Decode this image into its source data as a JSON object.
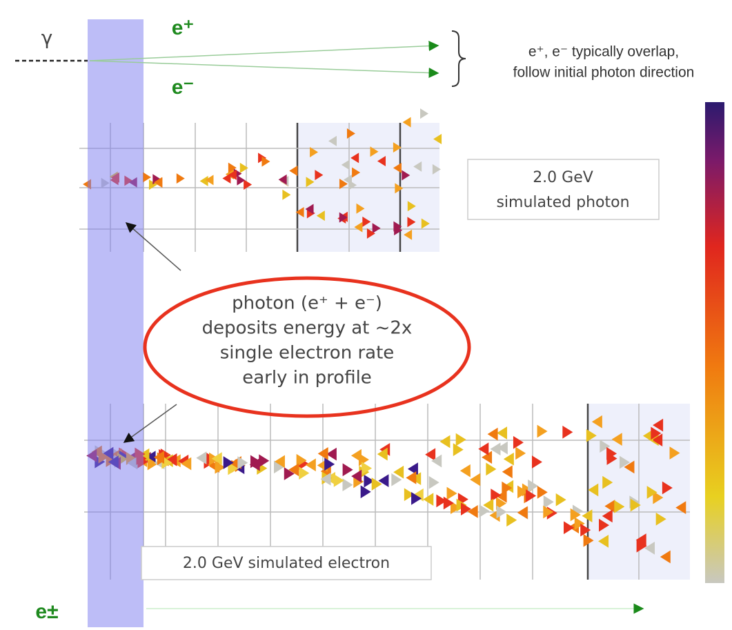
{
  "labels": {
    "photon": "γ",
    "positron": "e⁺",
    "electron": "e⁻",
    "lepton": "e±"
  },
  "annotation": {
    "lines": [
      "e⁺, e⁻ typically overlap,",
      "follow initial photon direction"
    ]
  },
  "photon_panel": {
    "label_lines": [
      "2.0 GeV",
      "simulated photon"
    ]
  },
  "electron_panel": {
    "label": "2.0 GeV simulated electron"
  },
  "callout": {
    "lines": [
      "photon (e⁺ + e⁻)",
      "deposits energy at ~2x",
      "single electron rate",
      "early in profile"
    ]
  }
}
